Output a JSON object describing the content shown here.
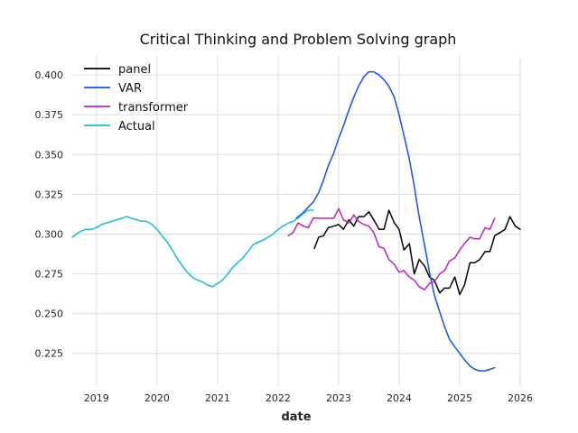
{
  "chart_data": {
    "type": "line",
    "title": "Critical Thinking and Problem Solving graph",
    "xlabel": "date",
    "ylabel": "",
    "xlim": [
      2018.6,
      2026.0
    ],
    "ylim": [
      0.205,
      0.412
    ],
    "grid": true,
    "legend_position": "top-left",
    "x_ticks": [
      {
        "value": 2019,
        "label": "2019"
      },
      {
        "value": 2020,
        "label": "2020"
      },
      {
        "value": 2021,
        "label": "2021"
      },
      {
        "value": 2022,
        "label": "2022"
      },
      {
        "value": 2023,
        "label": "2023"
      },
      {
        "value": 2024,
        "label": "2024"
      },
      {
        "value": 2025,
        "label": "2025"
      },
      {
        "value": 2026,
        "label": "2026"
      }
    ],
    "y_ticks": [
      {
        "value": 0.225,
        "label": "0.225"
      },
      {
        "value": 0.25,
        "label": "0.250"
      },
      {
        "value": 0.275,
        "label": "0.275"
      },
      {
        "value": 0.3,
        "label": "0.300"
      },
      {
        "value": 0.325,
        "label": "0.325"
      },
      {
        "value": 0.35,
        "label": "0.350"
      },
      {
        "value": 0.375,
        "label": "0.375"
      },
      {
        "value": 0.4,
        "label": "0.400"
      }
    ],
    "series": [
      {
        "name": "panel",
        "color": "#000000",
        "points": [
          [
            2022.6,
            0.291
          ],
          [
            2022.67,
            0.298
          ],
          [
            2022.75,
            0.299
          ],
          [
            2022.83,
            0.304
          ],
          [
            2022.92,
            0.305
          ],
          [
            2023.0,
            0.306
          ],
          [
            2023.08,
            0.303
          ],
          [
            2023.17,
            0.309
          ],
          [
            2023.25,
            0.305
          ],
          [
            2023.33,
            0.311
          ],
          [
            2023.42,
            0.311
          ],
          [
            2023.5,
            0.314
          ],
          [
            2023.58,
            0.309
          ],
          [
            2023.67,
            0.303
          ],
          [
            2023.75,
            0.303
          ],
          [
            2023.83,
            0.315
          ],
          [
            2023.92,
            0.307
          ],
          [
            2024.0,
            0.303
          ],
          [
            2024.08,
            0.29
          ],
          [
            2024.17,
            0.294
          ],
          [
            2024.25,
            0.275
          ],
          [
            2024.33,
            0.284
          ],
          [
            2024.42,
            0.28
          ],
          [
            2024.5,
            0.273
          ],
          [
            2024.58,
            0.271
          ],
          [
            2024.67,
            0.263
          ],
          [
            2024.75,
            0.266
          ],
          [
            2024.83,
            0.266
          ],
          [
            2024.92,
            0.273
          ],
          [
            2025.0,
            0.262
          ],
          [
            2025.08,
            0.268
          ],
          [
            2025.17,
            0.282
          ],
          [
            2025.25,
            0.282
          ],
          [
            2025.33,
            0.284
          ],
          [
            2025.42,
            0.289
          ],
          [
            2025.5,
            0.289
          ],
          [
            2025.58,
            0.299
          ],
          [
            2025.67,
            0.301
          ],
          [
            2025.75,
            0.303
          ],
          [
            2025.83,
            0.311
          ],
          [
            2025.92,
            0.305
          ],
          [
            2026.0,
            0.303
          ]
        ]
      },
      {
        "name": "VAR",
        "color": "#1750ee",
        "points": [
          [
            2022.3,
            0.31
          ],
          [
            2022.4,
            0.313
          ],
          [
            2022.5,
            0.317
          ],
          [
            2022.58,
            0.32
          ],
          [
            2022.67,
            0.326
          ],
          [
            2022.75,
            0.334
          ],
          [
            2022.83,
            0.343
          ],
          [
            2022.92,
            0.351
          ],
          [
            2023.0,
            0.36
          ],
          [
            2023.08,
            0.368
          ],
          [
            2023.17,
            0.378
          ],
          [
            2023.25,
            0.386
          ],
          [
            2023.33,
            0.393
          ],
          [
            2023.42,
            0.399
          ],
          [
            2023.5,
            0.402
          ],
          [
            2023.58,
            0.402
          ],
          [
            2023.67,
            0.4
          ],
          [
            2023.75,
            0.397
          ],
          [
            2023.83,
            0.393
          ],
          [
            2023.92,
            0.386
          ],
          [
            2024.0,
            0.375
          ],
          [
            2024.08,
            0.362
          ],
          [
            2024.17,
            0.347
          ],
          [
            2024.25,
            0.33
          ],
          [
            2024.33,
            0.311
          ],
          [
            2024.42,
            0.293
          ],
          [
            2024.5,
            0.276
          ],
          [
            2024.58,
            0.262
          ],
          [
            2024.67,
            0.251
          ],
          [
            2024.75,
            0.242
          ],
          [
            2024.83,
            0.234
          ],
          [
            2024.92,
            0.229
          ],
          [
            2025.0,
            0.225
          ],
          [
            2025.08,
            0.221
          ],
          [
            2025.17,
            0.217
          ],
          [
            2025.25,
            0.215
          ],
          [
            2025.33,
            0.214
          ],
          [
            2025.42,
            0.214
          ],
          [
            2025.5,
            0.215
          ],
          [
            2025.58,
            0.216
          ]
        ]
      },
      {
        "name": "transformer",
        "color": "#c21fc2",
        "points": [
          [
            2022.17,
            0.299
          ],
          [
            2022.25,
            0.301
          ],
          [
            2022.33,
            0.307
          ],
          [
            2022.42,
            0.305
          ],
          [
            2022.5,
            0.304
          ],
          [
            2022.58,
            0.31
          ],
          [
            2022.67,
            0.31
          ],
          [
            2022.75,
            0.31
          ],
          [
            2022.83,
            0.31
          ],
          [
            2022.92,
            0.31
          ],
          [
            2023.0,
            0.316
          ],
          [
            2023.08,
            0.309
          ],
          [
            2023.17,
            0.307
          ],
          [
            2023.25,
            0.312
          ],
          [
            2023.33,
            0.308
          ],
          [
            2023.42,
            0.306
          ],
          [
            2023.5,
            0.305
          ],
          [
            2023.58,
            0.301
          ],
          [
            2023.67,
            0.292
          ],
          [
            2023.75,
            0.291
          ],
          [
            2023.83,
            0.284
          ],
          [
            2023.92,
            0.281
          ],
          [
            2024.0,
            0.276
          ],
          [
            2024.08,
            0.277
          ],
          [
            2024.17,
            0.273
          ],
          [
            2024.25,
            0.271
          ],
          [
            2024.33,
            0.267
          ],
          [
            2024.42,
            0.265
          ],
          [
            2024.5,
            0.269
          ],
          [
            2024.58,
            0.27
          ],
          [
            2024.67,
            0.275
          ],
          [
            2024.75,
            0.277
          ],
          [
            2024.83,
            0.283
          ],
          [
            2024.92,
            0.285
          ],
          [
            2025.0,
            0.29
          ],
          [
            2025.08,
            0.294
          ],
          [
            2025.17,
            0.298
          ],
          [
            2025.25,
            0.297
          ],
          [
            2025.33,
            0.297
          ],
          [
            2025.42,
            0.304
          ],
          [
            2025.5,
            0.303
          ],
          [
            2025.58,
            0.31
          ]
        ]
      },
      {
        "name": "Actual",
        "color": "#17becf",
        "points": [
          [
            2018.6,
            0.298
          ],
          [
            2018.67,
            0.3
          ],
          [
            2018.75,
            0.302
          ],
          [
            2018.83,
            0.303
          ],
          [
            2018.92,
            0.303
          ],
          [
            2019.0,
            0.304
          ],
          [
            2019.08,
            0.306
          ],
          [
            2019.17,
            0.307
          ],
          [
            2019.25,
            0.308
          ],
          [
            2019.33,
            0.309
          ],
          [
            2019.42,
            0.31
          ],
          [
            2019.5,
            0.311
          ],
          [
            2019.58,
            0.31
          ],
          [
            2019.67,
            0.309
          ],
          [
            2019.75,
            0.308
          ],
          [
            2019.83,
            0.308
          ],
          [
            2019.92,
            0.306
          ],
          [
            2020.0,
            0.303
          ],
          [
            2020.08,
            0.299
          ],
          [
            2020.17,
            0.295
          ],
          [
            2020.25,
            0.29
          ],
          [
            2020.33,
            0.285
          ],
          [
            2020.42,
            0.28
          ],
          [
            2020.5,
            0.276
          ],
          [
            2020.58,
            0.273
          ],
          [
            2020.67,
            0.271
          ],
          [
            2020.75,
            0.27
          ],
          [
            2020.83,
            0.268
          ],
          [
            2020.92,
            0.267
          ],
          [
            2021.0,
            0.269
          ],
          [
            2021.08,
            0.271
          ],
          [
            2021.17,
            0.275
          ],
          [
            2021.25,
            0.279
          ],
          [
            2021.33,
            0.282
          ],
          [
            2021.42,
            0.285
          ],
          [
            2021.5,
            0.289
          ],
          [
            2021.58,
            0.293
          ],
          [
            2021.67,
            0.295
          ],
          [
            2021.75,
            0.296
          ],
          [
            2021.83,
            0.298
          ],
          [
            2021.92,
            0.3
          ],
          [
            2022.0,
            0.303
          ],
          [
            2022.08,
            0.305
          ],
          [
            2022.17,
            0.307
          ],
          [
            2022.25,
            0.308
          ],
          [
            2022.33,
            0.31
          ],
          [
            2022.42,
            0.313
          ],
          [
            2022.5,
            0.315
          ],
          [
            2022.58,
            0.315
          ]
        ]
      }
    ]
  }
}
